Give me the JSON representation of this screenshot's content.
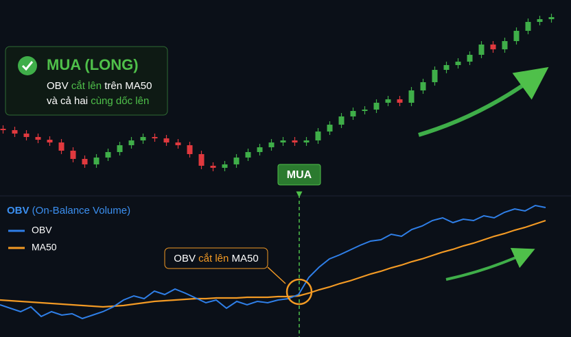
{
  "chart_data": [
    {
      "type": "candlestick",
      "open": [
        112,
        110,
        105,
        100,
        96,
        92,
        80,
        68,
        60,
        70,
        78,
        88,
        95,
        100,
        98,
        92,
        88,
        75,
        58,
        55,
        60,
        70,
        78,
        85,
        92,
        95,
        92,
        95,
        108,
        118,
        130,
        138,
        140,
        150,
        155,
        150,
        168,
        180,
        198,
        205,
        210,
        220,
        235,
        228,
        240,
        255,
        268,
        272
      ],
      "high": [
        117,
        115,
        110,
        105,
        101,
        97,
        85,
        73,
        75,
        83,
        93,
        100,
        105,
        105,
        103,
        97,
        93,
        80,
        63,
        65,
        75,
        83,
        90,
        97,
        100,
        100,
        100,
        113,
        123,
        135,
        143,
        145,
        155,
        160,
        160,
        173,
        185,
        203,
        210,
        215,
        225,
        240,
        240,
        245,
        260,
        273,
        277,
        280
      ],
      "low": [
        105,
        100,
        95,
        91,
        87,
        75,
        63,
        55,
        55,
        65,
        73,
        83,
        90,
        93,
        87,
        83,
        70,
        53,
        50,
        50,
        55,
        65,
        73,
        80,
        87,
        87,
        87,
        90,
        103,
        113,
        125,
        133,
        135,
        145,
        145,
        145,
        163,
        175,
        193,
        200,
        205,
        215,
        223,
        223,
        235,
        250,
        263,
        267
      ],
      "close": [
        110,
        105,
        100,
        96,
        92,
        80,
        68,
        60,
        70,
        78,
        88,
        95,
        100,
        98,
        92,
        88,
        75,
        58,
        55,
        60,
        70,
        78,
        85,
        92,
        95,
        92,
        95,
        108,
        118,
        130,
        138,
        140,
        150,
        155,
        150,
        168,
        180,
        198,
        205,
        210,
        220,
        235,
        228,
        240,
        255,
        268,
        272,
        275
      ],
      "colors": {
        "up": "#3fae49",
        "down": "#e0393e"
      },
      "ylim": [
        0,
        300
      ],
      "signal": {
        "title": "MUA (LONG)",
        "line1": [
          {
            "text": "OBV ",
            "color": "#ffffff"
          },
          {
            "text": "cắt lên",
            "color": "#4fc04a"
          },
          {
            "text": " trên MA50",
            "color": "#ffffff"
          }
        ],
        "line2": [
          {
            "text": "và cả hai ",
            "color": "#ffffff"
          },
          {
            "text": "cùng dốc lên",
            "color": "#4fc04a"
          }
        ]
      },
      "marker_label": "MUA"
    },
    {
      "type": "line",
      "title": [
        {
          "text": "OBV",
          "color": "#3b8ff0"
        },
        {
          "text": " (On-Balance Volume)",
          "color": "#3b8ff0"
        }
      ],
      "x": [
        0,
        15,
        30,
        45,
        60,
        75,
        90,
        105,
        120,
        135,
        150,
        165,
        180,
        195,
        210,
        225,
        240,
        255,
        270,
        285,
        300,
        315,
        330,
        345,
        360,
        375,
        390,
        405,
        420,
        435,
        450,
        465,
        480,
        495,
        510,
        525,
        540,
        555,
        570,
        585,
        600,
        615,
        630,
        645,
        660,
        675,
        690,
        705,
        720,
        735,
        750,
        765,
        780,
        795
      ],
      "series": [
        {
          "name": "OBV",
          "color": "#2f7fe8",
          "values": [
            55,
            50,
            45,
            52,
            38,
            45,
            40,
            42,
            35,
            40,
            45,
            52,
            62,
            68,
            64,
            75,
            70,
            78,
            72,
            65,
            58,
            62,
            50,
            60,
            55,
            60,
            58,
            62,
            64,
            70,
            95,
            110,
            122,
            128,
            135,
            142,
            148,
            150,
            158,
            155,
            165,
            170,
            178,
            182,
            175,
            180,
            178,
            185,
            182,
            190,
            195,
            192,
            200,
            197
          ]
        },
        {
          "name": "MA50",
          "color": "#f39a24",
          "values": [
            62,
            61,
            60,
            59,
            58,
            57,
            56,
            55,
            54,
            53,
            52,
            53,
            54,
            56,
            58,
            60,
            61,
            62,
            63,
            64,
            64,
            65,
            65,
            65,
            66,
            66,
            66,
            67,
            67,
            68,
            72,
            77,
            81,
            86,
            90,
            95,
            100,
            104,
            109,
            113,
            118,
            122,
            127,
            132,
            136,
            141,
            145,
            150,
            155,
            159,
            164,
            168,
            173,
            178
          ]
        }
      ],
      "xlim": [
        0,
        832
      ],
      "ylim": [
        8,
        210
      ],
      "callout": [
        {
          "text": "OBV ",
          "color": "#ffffff"
        },
        {
          "text": "cắt lên",
          "color": "#f39a24"
        },
        {
          "text": " MA50",
          "color": "#ffffff"
        }
      ]
    }
  ]
}
